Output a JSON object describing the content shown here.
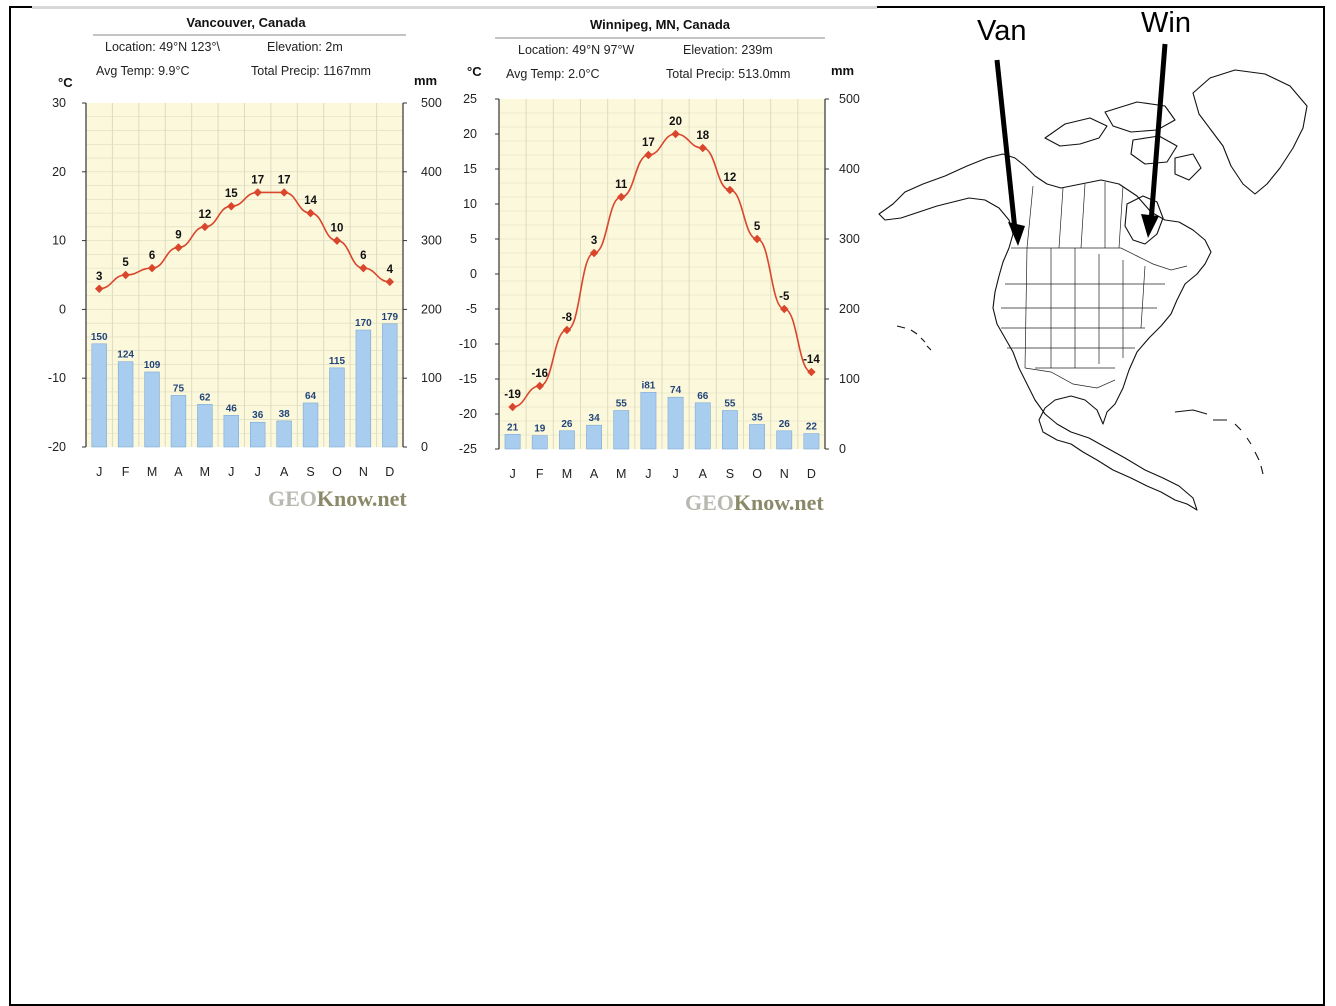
{
  "chart_data": [
    {
      "type": "line+bar",
      "title": "Vancouver, Canada",
      "meta": {
        "location": "Location:  49°N 123°\\",
        "elevation": "Elevation:  2m",
        "avg_temp": "Avg Temp:  9.9°C",
        "total_precip": "Total Precip:  1167mm"
      },
      "left_unit": "°C",
      "right_unit": "mm",
      "categories": [
        "J",
        "F",
        "M",
        "A",
        "M",
        "J",
        "J",
        "A",
        "S",
        "O",
        "N",
        "D"
      ],
      "temp_ticks": [
        "30",
        "20",
        "10",
        "0",
        "-10",
        "-20"
      ],
      "precip_ticks": [
        "500",
        "400",
        "300",
        "200",
        "100",
        "0"
      ],
      "temp_ylim": [
        -20,
        30
      ],
      "precip_ylim": [
        0,
        500
      ],
      "series": [
        {
          "name": "",
          "kind": "line",
          "color": "#d9462c",
          "values": [
            3,
            5,
            6,
            9,
            12,
            15,
            17,
            17,
            14,
            10,
            6,
            4
          ],
          "labels": [
            "3",
            "5",
            "6",
            "9",
            "12",
            "15",
            "17",
            "17",
            "14",
            "10",
            "6",
            "4"
          ]
        },
        {
          "name": "",
          "kind": "bar",
          "color": "#a9cdee",
          "values": [
            150,
            124,
            109,
            75,
            62,
            46,
            36,
            38,
            64,
            115,
            170,
            179
          ],
          "labels": [
            "150",
            "124",
            "109",
            "75",
            "62",
            "46",
            "36",
            "38",
            "64",
            "115",
            "170",
            "179"
          ]
        }
      ],
      "watermark": {
        "geo": "GEO",
        "rest": "Know.net"
      }
    },
    {
      "type": "line+bar",
      "title": "Winnipeg, MN, Canada",
      "meta": {
        "location": "Location:  49°N 97°W",
        "elevation": "Elevation:  239m",
        "avg_temp": "Avg Temp:  2.0°C",
        "total_precip": "Total Precip:  513.0mm"
      },
      "left_unit": "°C",
      "right_unit": "mm",
      "categories": [
        "J",
        "F",
        "M",
        "A",
        "M",
        "J",
        "J",
        "A",
        "S",
        "O",
        "N",
        "D"
      ],
      "temp_ticks": [
        "25",
        "20",
        "15",
        "10",
        "5",
        "0",
        "-5",
        "-10",
        "-15",
        "-20",
        "-25"
      ],
      "precip_ticks": [
        "500",
        "400",
        "300",
        "200",
        "100",
        "0"
      ],
      "temp_ylim": [
        -25,
        25
      ],
      "precip_ylim": [
        0,
        500
      ],
      "series": [
        {
          "name": "",
          "kind": "line",
          "color": "#d9462c",
          "values": [
            -19,
            -16,
            -8,
            3,
            11,
            17,
            20,
            18,
            12,
            5,
            -5,
            -14
          ],
          "labels": [
            "-19",
            "-16",
            "-8",
            "3",
            "11",
            "17",
            "20",
            "18",
            "12",
            "5",
            "-5",
            "-14"
          ]
        },
        {
          "name": "",
          "kind": "bar",
          "color": "#a9cdee",
          "values": [
            21,
            19,
            26,
            34,
            55,
            81,
            74,
            66,
            55,
            35,
            26,
            22
          ],
          "labels": [
            "21",
            "19",
            "26",
            "34",
            "55",
            "i81",
            "74",
            "66",
            "55",
            "35",
            "26",
            "22"
          ]
        }
      ],
      "watermark": {
        "geo": "GEO",
        "rest": "Know.net"
      }
    }
  ],
  "map": {
    "arrows": [
      {
        "label": "Van"
      },
      {
        "label": "Win"
      }
    ]
  },
  "colors": {
    "plot_bg": "#fbf8dc",
    "grid": "#dedcc0",
    "temp_line": "#d9462c",
    "precip_bar": "#a9cdee",
    "precip_label": "#23457a"
  }
}
